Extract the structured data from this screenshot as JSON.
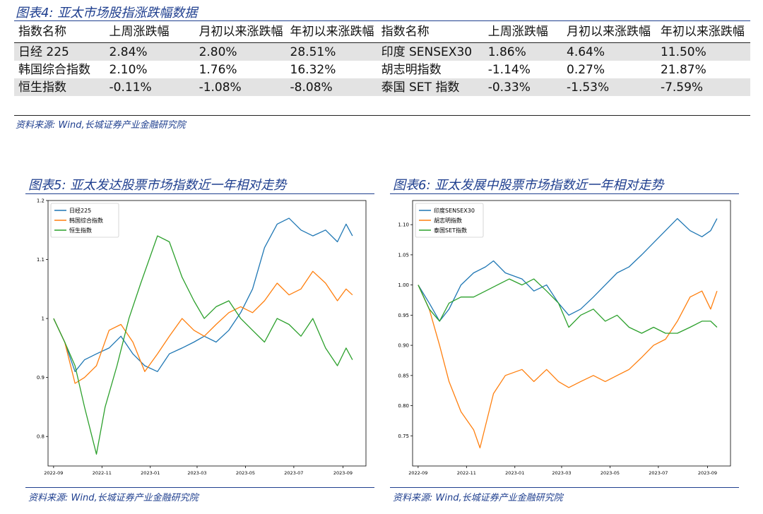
{
  "table_title": "图表4:  亚太市场股指涨跌幅数据",
  "table": {
    "headers": [
      "指数名称",
      "上周涨跌幅",
      "月初以来涨跌幅",
      "年初以来涨跌幅",
      "指数名称",
      "上周涨跌幅",
      "月初以来涨跌幅",
      "年初以来涨跌幅"
    ],
    "rows": [
      [
        "日经 225",
        "2.84%",
        "2.80%",
        "28.51%",
        "印度 SENSEX30",
        "1.86%",
        "4.64%",
        "11.50%"
      ],
      [
        "韩国综合指数",
        "2.10%",
        "1.76%",
        "16.32%",
        "胡志明指数",
        "-1.14%",
        "0.27%",
        "21.87%"
      ],
      [
        "恒生指数",
        "-0.11%",
        "-1.08%",
        "-8.08%",
        "泰国 SET 指数",
        "-0.33%",
        "-1.53%",
        "-7.59%"
      ]
    ]
  },
  "table_source": "资料来源:  Wind,长城证券产业金融研究院",
  "fig5_title": "图表5:  亚太发达股票市场指数近一年相对走势",
  "fig5_source": "资料来源:  Wind,长城证券产业金融研究院",
  "fig6_title": "图表6:  亚太发展中股票市场指数近一年相对走势",
  "fig6_source": "资料来源:  Wind,长城证券产业金融研究院",
  "chart_data": [
    {
      "type": "line",
      "x_ticks": [
        "2022-09",
        "2022-11",
        "2023-01",
        "2023-03",
        "2023-05",
        "2023-07",
        "2023-09"
      ],
      "xlim": [
        "2022-08-25",
        "2023-09-30"
      ],
      "ylim": [
        0.75,
        1.2
      ],
      "y_ticks": [
        0.8,
        0.9,
        1.0,
        1.1,
        1.2
      ],
      "legend": "top-left",
      "grid": false,
      "series": [
        {
          "name": "日经225",
          "color": "#1f77b4",
          "points": [
            [
              "2022-09-01",
              1.0
            ],
            [
              "2022-09-15",
              0.96
            ],
            [
              "2022-09-28",
              0.91
            ],
            [
              "2022-10-10",
              0.93
            ],
            [
              "2022-10-25",
              0.94
            ],
            [
              "2022-11-10",
              0.95
            ],
            [
              "2022-11-25",
              0.97
            ],
            [
              "2022-12-10",
              0.94
            ],
            [
              "2022-12-25",
              0.92
            ],
            [
              "2023-01-10",
              0.91
            ],
            [
              "2023-01-25",
              0.94
            ],
            [
              "2023-02-10",
              0.95
            ],
            [
              "2023-02-25",
              0.96
            ],
            [
              "2023-03-10",
              0.97
            ],
            [
              "2023-03-25",
              0.96
            ],
            [
              "2023-04-10",
              0.98
            ],
            [
              "2023-04-25",
              1.01
            ],
            [
              "2023-05-10",
              1.05
            ],
            [
              "2023-05-25",
              1.12
            ],
            [
              "2023-06-10",
              1.16
            ],
            [
              "2023-06-25",
              1.17
            ],
            [
              "2023-07-10",
              1.15
            ],
            [
              "2023-07-25",
              1.14
            ],
            [
              "2023-08-10",
              1.15
            ],
            [
              "2023-08-25",
              1.13
            ],
            [
              "2023-09-05",
              1.16
            ],
            [
              "2023-09-13",
              1.14
            ]
          ]
        },
        {
          "name": "韩国综合指数",
          "color": "#ff7f0e",
          "points": [
            [
              "2022-09-01",
              1.0
            ],
            [
              "2022-09-15",
              0.96
            ],
            [
              "2022-09-28",
              0.89
            ],
            [
              "2022-10-10",
              0.9
            ],
            [
              "2022-10-25",
              0.92
            ],
            [
              "2022-11-10",
              0.98
            ],
            [
              "2022-11-25",
              0.99
            ],
            [
              "2022-12-10",
              0.96
            ],
            [
              "2022-12-25",
              0.91
            ],
            [
              "2023-01-10",
              0.94
            ],
            [
              "2023-01-25",
              0.97
            ],
            [
              "2023-02-10",
              1.0
            ],
            [
              "2023-02-25",
              0.98
            ],
            [
              "2023-03-10",
              0.97
            ],
            [
              "2023-03-25",
              0.99
            ],
            [
              "2023-04-10",
              1.01
            ],
            [
              "2023-04-25",
              1.02
            ],
            [
              "2023-05-10",
              1.01
            ],
            [
              "2023-05-25",
              1.03
            ],
            [
              "2023-06-10",
              1.06
            ],
            [
              "2023-06-25",
              1.04
            ],
            [
              "2023-07-10",
              1.05
            ],
            [
              "2023-07-25",
              1.08
            ],
            [
              "2023-08-10",
              1.06
            ],
            [
              "2023-08-25",
              1.03
            ],
            [
              "2023-09-05",
              1.05
            ],
            [
              "2023-09-13",
              1.04
            ]
          ]
        },
        {
          "name": "恒生指数",
          "color": "#2ca02c",
          "points": [
            [
              "2022-09-01",
              1.0
            ],
            [
              "2022-09-15",
              0.96
            ],
            [
              "2022-09-28",
              0.92
            ],
            [
              "2022-10-10",
              0.85
            ],
            [
              "2022-10-25",
              0.77
            ],
            [
              "2022-11-05",
              0.85
            ],
            [
              "2022-11-20",
              0.92
            ],
            [
              "2022-12-05",
              1.0
            ],
            [
              "2022-12-20",
              1.06
            ],
            [
              "2023-01-10",
              1.14
            ],
            [
              "2023-01-25",
              1.13
            ],
            [
              "2023-02-10",
              1.07
            ],
            [
              "2023-02-25",
              1.03
            ],
            [
              "2023-03-10",
              1.0
            ],
            [
              "2023-03-25",
              1.02
            ],
            [
              "2023-04-10",
              1.03
            ],
            [
              "2023-04-25",
              1.0
            ],
            [
              "2023-05-10",
              0.98
            ],
            [
              "2023-05-25",
              0.96
            ],
            [
              "2023-06-10",
              1.0
            ],
            [
              "2023-06-25",
              0.99
            ],
            [
              "2023-07-10",
              0.97
            ],
            [
              "2023-07-25",
              1.0
            ],
            [
              "2023-08-10",
              0.95
            ],
            [
              "2023-08-25",
              0.92
            ],
            [
              "2023-09-05",
              0.95
            ],
            [
              "2023-09-13",
              0.93
            ]
          ]
        }
      ]
    },
    {
      "type": "line",
      "x_ticks": [
        "2022-09",
        "2022-11",
        "2023-01",
        "2023-03",
        "2023-05",
        "2023-07",
        "2023-09"
      ],
      "xlim": [
        "2022-08-25",
        "2023-09-30"
      ],
      "ylim": [
        0.7,
        1.14
      ],
      "y_ticks": [
        0.75,
        0.8,
        0.85,
        0.9,
        0.95,
        1.0,
        1.05,
        1.1
      ],
      "legend": "top-left",
      "grid": false,
      "series": [
        {
          "name": "印度SENSEX30",
          "color": "#1f77b4",
          "points": [
            [
              "2022-09-01",
              1.0
            ],
            [
              "2022-09-15",
              0.97
            ],
            [
              "2022-09-28",
              0.94
            ],
            [
              "2022-10-10",
              0.96
            ],
            [
              "2022-10-25",
              1.0
            ],
            [
              "2022-11-10",
              1.02
            ],
            [
              "2022-11-25",
              1.03
            ],
            [
              "2022-12-05",
              1.04
            ],
            [
              "2022-12-20",
              1.02
            ],
            [
              "2023-01-10",
              1.01
            ],
            [
              "2023-01-25",
              0.99
            ],
            [
              "2023-02-10",
              1.0
            ],
            [
              "2023-02-25",
              0.97
            ],
            [
              "2023-03-10",
              0.95
            ],
            [
              "2023-03-25",
              0.96
            ],
            [
              "2023-04-10",
              0.98
            ],
            [
              "2023-04-25",
              1.0
            ],
            [
              "2023-05-10",
              1.02
            ],
            [
              "2023-05-25",
              1.03
            ],
            [
              "2023-06-10",
              1.05
            ],
            [
              "2023-06-25",
              1.07
            ],
            [
              "2023-07-10",
              1.09
            ],
            [
              "2023-07-25",
              1.11
            ],
            [
              "2023-08-10",
              1.09
            ],
            [
              "2023-08-25",
              1.08
            ],
            [
              "2023-09-05",
              1.09
            ],
            [
              "2023-09-13",
              1.11
            ]
          ]
        },
        {
          "name": "胡志明指数",
          "color": "#ff7f0e",
          "points": [
            [
              "2022-09-01",
              1.0
            ],
            [
              "2022-09-15",
              0.96
            ],
            [
              "2022-09-28",
              0.9
            ],
            [
              "2022-10-10",
              0.84
            ],
            [
              "2022-10-25",
              0.79
            ],
            [
              "2022-11-10",
              0.76
            ],
            [
              "2022-11-18",
              0.73
            ],
            [
              "2022-12-05",
              0.82
            ],
            [
              "2022-12-20",
              0.85
            ],
            [
              "2023-01-10",
              0.86
            ],
            [
              "2023-01-25",
              0.84
            ],
            [
              "2023-02-10",
              0.86
            ],
            [
              "2023-02-25",
              0.84
            ],
            [
              "2023-03-10",
              0.83
            ],
            [
              "2023-03-25",
              0.84
            ],
            [
              "2023-04-10",
              0.85
            ],
            [
              "2023-04-25",
              0.84
            ],
            [
              "2023-05-10",
              0.85
            ],
            [
              "2023-05-25",
              0.86
            ],
            [
              "2023-06-10",
              0.88
            ],
            [
              "2023-06-25",
              0.9
            ],
            [
              "2023-07-10",
              0.91
            ],
            [
              "2023-07-25",
              0.94
            ],
            [
              "2023-08-10",
              0.98
            ],
            [
              "2023-08-25",
              0.99
            ],
            [
              "2023-09-05",
              0.96
            ],
            [
              "2023-09-13",
              0.99
            ]
          ]
        },
        {
          "name": "泰国SET指数",
          "color": "#2ca02c",
          "points": [
            [
              "2022-09-01",
              1.0
            ],
            [
              "2022-09-15",
              0.96
            ],
            [
              "2022-09-28",
              0.94
            ],
            [
              "2022-10-10",
              0.97
            ],
            [
              "2022-10-25",
              0.98
            ],
            [
              "2022-11-10",
              0.98
            ],
            [
              "2022-11-25",
              0.99
            ],
            [
              "2022-12-10",
              1.0
            ],
            [
              "2022-12-25",
              1.01
            ],
            [
              "2023-01-10",
              1.0
            ],
            [
              "2023-01-25",
              1.01
            ],
            [
              "2023-02-10",
              0.99
            ],
            [
              "2023-02-25",
              0.97
            ],
            [
              "2023-03-10",
              0.93
            ],
            [
              "2023-03-25",
              0.95
            ],
            [
              "2023-04-10",
              0.96
            ],
            [
              "2023-04-25",
              0.94
            ],
            [
              "2023-05-10",
              0.95
            ],
            [
              "2023-05-25",
              0.93
            ],
            [
              "2023-06-10",
              0.92
            ],
            [
              "2023-06-25",
              0.93
            ],
            [
              "2023-07-10",
              0.92
            ],
            [
              "2023-07-25",
              0.92
            ],
            [
              "2023-08-10",
              0.93
            ],
            [
              "2023-08-25",
              0.94
            ],
            [
              "2023-09-05",
              0.94
            ],
            [
              "2023-09-13",
              0.93
            ]
          ]
        }
      ]
    }
  ]
}
